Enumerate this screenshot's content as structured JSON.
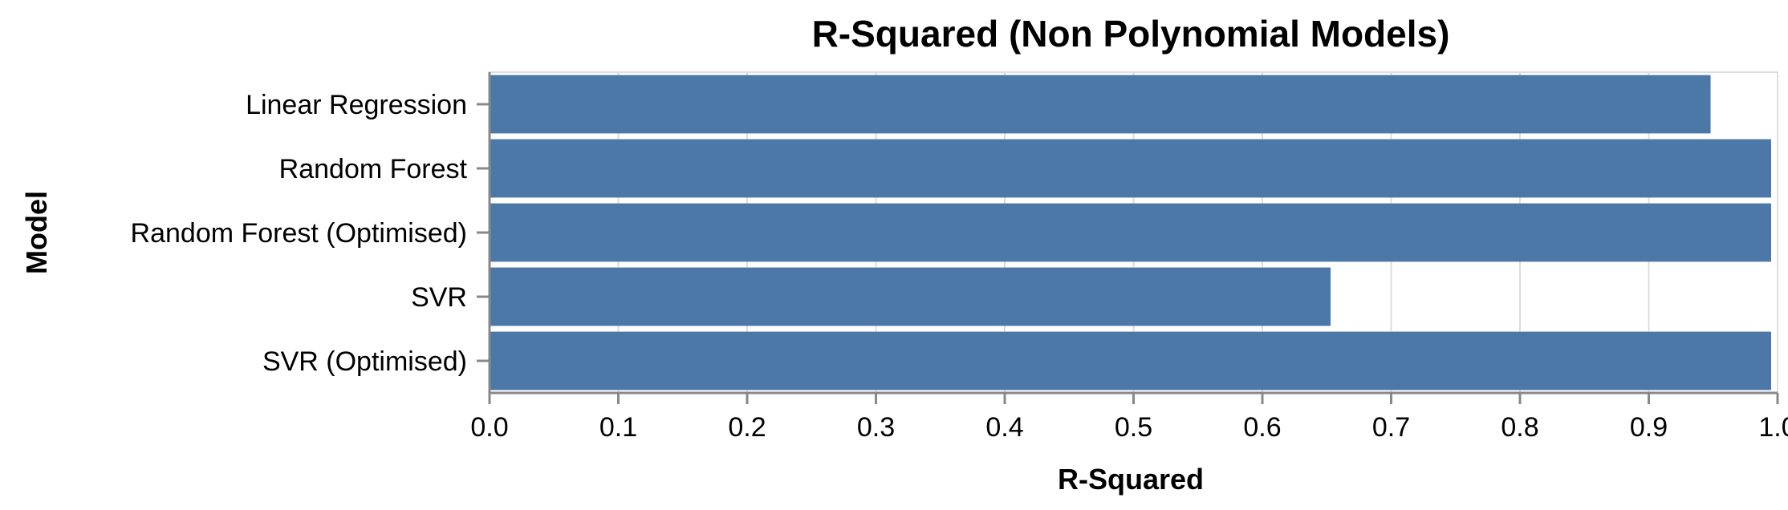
{
  "chart_data": {
    "type": "bar",
    "orientation": "horizontal",
    "title": "R-Squared (Non Polynomial Models)",
    "xlabel": "R-Squared",
    "ylabel": "Model",
    "xlim": [
      0,
      1
    ],
    "xticks": [
      "0.0",
      "0.1",
      "0.2",
      "0.3",
      "0.4",
      "0.5",
      "0.6",
      "0.7",
      "0.8",
      "0.9",
      "1.0"
    ],
    "grid": true,
    "categories": [
      "Linear Regression",
      "Random Forest",
      "Random Forest (Optimised)",
      "SVR",
      "SVR (Optimised)"
    ],
    "values": [
      0.948,
      0.995,
      0.995,
      0.653,
      0.995
    ],
    "bar_color": "#4c78a8"
  }
}
